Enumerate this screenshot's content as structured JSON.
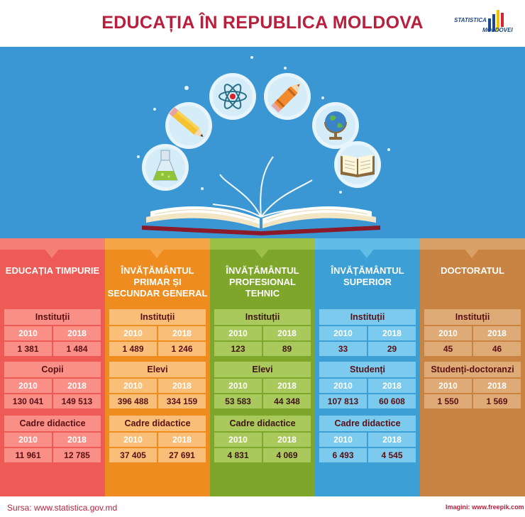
{
  "title": "EDUCAȚIA ÎN REPUBLICA MOLDOVA",
  "logo": {
    "line1": "STATISTICA",
    "line2": "MOLDOVEI"
  },
  "colors": {
    "title": "#b81f3c",
    "banner": "#3b97d3",
    "values_text": "#5a0f14"
  },
  "icons": [
    "flask-icon",
    "pencil-icon",
    "atom-icon",
    "crayon-icon",
    "globe-icon",
    "book-icon",
    "open-book-icon"
  ],
  "columns": [
    {
      "title": "EDUCAȚIA TIMPURIE",
      "bg": "#ee5a55",
      "head": "#f47f74",
      "label_bg": "#f98f86",
      "cell_bg": "#f98f86",
      "label_color": "#5a0f14",
      "year_color": "#ffffff",
      "groups": [
        {
          "label": "Instituții",
          "years": [
            "2010",
            "2018"
          ],
          "values": [
            "1 381",
            "1 484"
          ]
        },
        {
          "label": "Copii",
          "years": [
            "2010",
            "2018"
          ],
          "values": [
            "130 041",
            "149 513"
          ]
        },
        {
          "label": "Cadre didactice",
          "years": [
            "2010",
            "2018"
          ],
          "values": [
            "11 961",
            "12 785"
          ]
        }
      ]
    },
    {
      "title": "ÎNVĂȚĂMÂNTUL PRIMAR ȘI SECUNDAR GENERAL",
      "bg": "#ef8c1f",
      "head": "#f5a748",
      "label_bg": "#f9bf78",
      "cell_bg": "#f9bf78",
      "label_color": "#5a0f14",
      "year_color": "#ffffff",
      "groups": [
        {
          "label": "Instituții",
          "years": [
            "2010",
            "2018"
          ],
          "values": [
            "1 489",
            "1 246"
          ]
        },
        {
          "label": "Elevi",
          "years": [
            "2010",
            "2018"
          ],
          "values": [
            "396 488",
            "334 159"
          ]
        },
        {
          "label": "Cadre didactice",
          "years": [
            "2010",
            "2018"
          ],
          "values": [
            "37 405",
            "27 691"
          ]
        }
      ]
    },
    {
      "title": "ÎNVĂȚĂMÂNTUL PROFESIONAL TEHNIC",
      "bg": "#7ea62b",
      "head": "#9cbf45",
      "label_bg": "#a9c95c",
      "cell_bg": "#a9c95c",
      "label_color": "#3c1410",
      "year_color": "#ffffff",
      "groups": [
        {
          "label": "Instituții",
          "years": [
            "2010",
            "2018"
          ],
          "values": [
            "123",
            "89"
          ]
        },
        {
          "label": "Elevi",
          "years": [
            "2010",
            "2018"
          ],
          "values": [
            "53 583",
            "44 348"
          ]
        },
        {
          "label": "Cadre didactice",
          "years": [
            "2010",
            "2018"
          ],
          "values": [
            "4 831",
            "4 069"
          ]
        }
      ]
    },
    {
      "title": "ÎNVĂȚĂMÂNTUL SUPERIOR",
      "bg": "#3c9fd6",
      "head": "#62bde6",
      "label_bg": "#7ccbee",
      "cell_bg": "#7ccbee",
      "label_color": "#5a0f14",
      "year_color": "#ffffff",
      "groups": [
        {
          "label": "Instituții",
          "years": [
            "2010",
            "2018"
          ],
          "values": [
            "33",
            "29"
          ]
        },
        {
          "label": "Studenți",
          "years": [
            "2010",
            "2018"
          ],
          "values": [
            "107 813",
            "60 608"
          ]
        },
        {
          "label": "Cadre didactice",
          "years": [
            "2010",
            "2018"
          ],
          "values": [
            "6 493",
            "4 545"
          ]
        }
      ]
    },
    {
      "title": "DOCTORATUL",
      "bg": "#c98444",
      "head": "#d89f66",
      "label_bg": "#deaa76",
      "cell_bg": "#deaa76",
      "label_color": "#5a0f14",
      "year_color": "#ffffff",
      "groups": [
        {
          "label": "Instituții",
          "years": [
            "2010",
            "2018"
          ],
          "values": [
            "45",
            "46"
          ]
        },
        {
          "label": "Studenți-doctoranzi",
          "years": [
            "2010",
            "2018"
          ],
          "values": [
            "1 550",
            "1 569"
          ]
        }
      ]
    }
  ],
  "footer": {
    "source": "Sursa: www.statistica.gov.md",
    "images": "Imagini: www.freepik.com"
  }
}
